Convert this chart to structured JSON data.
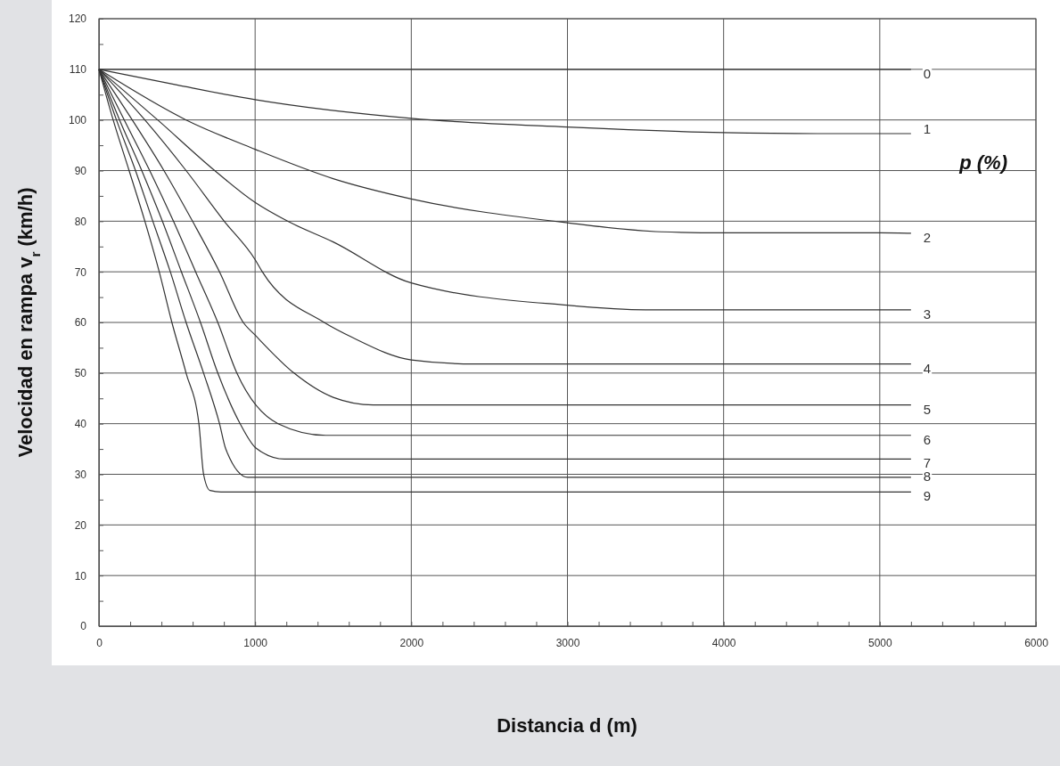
{
  "chart_data": {
    "type": "line",
    "xlabel": "Distancia d (m)",
    "ylabel": "Velocidad en rampa v$_{r}$ (km/h)",
    "annotations": [
      "p (%)"
    ],
    "xlim": [
      0,
      6000
    ],
    "xticks": [
      0,
      {
        "value": 200,
        "label": null
      },
      {
        "value": 400,
        "label": null
      },
      {
        "value": 600,
        "label": null
      },
      {
        "value": 800,
        "label": null
      },
      1000,
      {
        "value": 1200,
        "label": null
      },
      {
        "value": 1400,
        "label": null
      },
      {
        "value": 1600,
        "label": null
      },
      {
        "value": 1800,
        "label": null
      },
      2000,
      {
        "value": 2200,
        "label": null
      },
      {
        "value": 2400,
        "label": null
      },
      {
        "value": 2600,
        "label": null
      },
      {
        "value": 2800,
        "label": null
      },
      3000,
      {
        "value": 3200,
        "label": null
      },
      {
        "value": 3400,
        "label": null
      },
      {
        "value": 3600,
        "label": null
      },
      {
        "value": 3800,
        "label": null
      },
      4000,
      {
        "value": 4200,
        "label": null
      },
      {
        "value": 4400,
        "label": null
      },
      {
        "value": 4600,
        "label": null
      },
      {
        "value": 4800,
        "label": null
      },
      5000,
      {
        "value": 5200,
        "label": null
      },
      {
        "value": 5400,
        "label": null
      },
      {
        "value": 5600,
        "label": null
      },
      {
        "value": 5800,
        "label": null
      },
      6000
    ],
    "ylim": [
      0,
      120
    ],
    "yticks": [
      0,
      {
        "value": 5,
        "label": null
      },
      10,
      {
        "value": 15,
        "label": null
      },
      20,
      {
        "value": 25,
        "label": null
      },
      30,
      {
        "value": 35,
        "label": null
      },
      40,
      {
        "value": 45,
        "label": null
      },
      50,
      {
        "value": 55,
        "label": null
      },
      60,
      {
        "value": 65,
        "label": null
      },
      70,
      {
        "value": 75,
        "label": null
      },
      80,
      {
        "value": 85,
        "label": null
      },
      90,
      {
        "value": 95,
        "label": null
      },
      100,
      {
        "value": 105,
        "label": null
      },
      110,
      {
        "value": 115,
        "label": null
      },
      120
    ],
    "grid": true,
    "marker": "none",
    "line_style": "solid",
    "series": [
      {
        "name": "0",
        "color": "#333333",
        "x": [
          0,
          5200
        ],
        "values": [
          110,
          110
        ]
      },
      {
        "name": "1",
        "color": "#333333",
        "x": [
          0,
          500,
          1000,
          2000,
          3000,
          4000,
          4600,
          5200
        ],
        "values": [
          110,
          106.9,
          104,
          100.3,
          98.6,
          97.5,
          97.3,
          97.3
        ]
      },
      {
        "name": "2",
        "color": "#333333",
        "x": [
          0,
          558,
          1000,
          1500,
          2000,
          3000,
          3600,
          4000,
          5000,
          5200
        ],
        "values": [
          110,
          100,
          94.2,
          88.4,
          84.4,
          79.7,
          77.9,
          77.7,
          77.7,
          77.6
        ]
      },
      {
        "name": "3",
        "color": "#333333",
        "x": [
          0,
          376,
          741,
          1000,
          1208,
          1500,
          2000,
          3000,
          3500,
          5200
        ],
        "values": [
          110,
          100,
          90,
          83.7,
          80,
          75.9,
          67.8,
          63.4,
          62.5,
          62.5
        ]
      },
      {
        "name": "4",
        "color": "#333333",
        "x": [
          0,
          294,
          558,
          802,
          1000,
          1046,
          1442,
          1625,
          2000,
          2400,
          5200
        ],
        "values": [
          110,
          100,
          90,
          80,
          72.4,
          70,
          60,
          57,
          52.6,
          51.8,
          51.8
        ]
      },
      {
        "name": "5",
        "color": "#333333",
        "x": [
          0,
          213,
          416,
          599,
          772,
          924,
          1000,
          1249,
          1500,
          1756,
          5200
        ],
        "values": [
          110,
          100,
          90,
          80,
          70,
          60,
          57.5,
          50,
          45.2,
          43.7,
          43.7
        ]
      },
      {
        "name": "6",
        "color": "#333333",
        "x": [
          0,
          162,
          325,
          477,
          619,
          761,
          883,
          1147,
          1452,
          5200
        ],
        "values": [
          110,
          100,
          90,
          80,
          70,
          60,
          50,
          40,
          37.7,
          37.7
        ]
      },
      {
        "name": "7",
        "color": "#333333",
        "x": [
          0,
          132,
          274,
          406,
          528,
          650,
          761,
          904,
          1005,
          1188,
          5200
        ],
        "values": [
          110,
          100,
          90,
          80,
          70,
          60,
          50,
          40,
          35.2,
          33,
          33
        ]
      },
      {
        "name": "8",
        "color": "#333333",
        "x": [
          0,
          112,
          234,
          345,
          457,
          558,
          670,
          772,
          812,
          954,
          5200
        ],
        "values": [
          110,
          100,
          90,
          80,
          70,
          60,
          50,
          40,
          35,
          29.4,
          29.4
        ]
      },
      {
        "name": "9",
        "color": "#333333",
        "x": [
          0,
          91,
          193,
          294,
          386,
          467,
          558,
          640,
          670,
          711,
          782,
          5200
        ],
        "values": [
          110,
          100,
          90,
          80,
          70,
          60,
          50,
          40,
          30,
          26.8,
          26.5,
          26.5
        ]
      }
    ]
  }
}
